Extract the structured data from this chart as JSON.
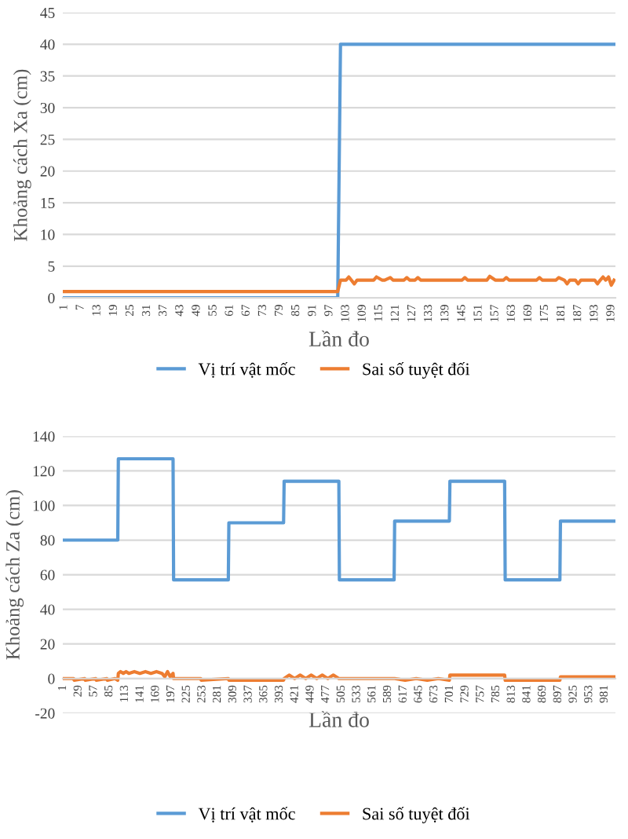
{
  "chart_data": [
    {
      "type": "line",
      "xlabel": "Lần đo",
      "ylabel": "Khoảng cách Xa (cm)",
      "xlim": [
        0.5,
        200.5
      ],
      "xticks": [
        1,
        7,
        13,
        19,
        25,
        31,
        37,
        43,
        49,
        55,
        61,
        67,
        73,
        79,
        85,
        91,
        97,
        103,
        109,
        115,
        121,
        127,
        133,
        139,
        145,
        151,
        157,
        163,
        169,
        175,
        181,
        187,
        193,
        199
      ],
      "ylim": [
        0,
        45
      ],
      "yticks": [
        0,
        5,
        10,
        15,
        20,
        25,
        30,
        35,
        40,
        45
      ],
      "grid": "y",
      "legend": "bottom",
      "series": [
        {
          "name": "Vị trí vật mốc",
          "color": "#5b9bd5",
          "x": [
            1,
            100,
            101,
            200
          ],
          "values": [
            0,
            0,
            40,
            40
          ]
        },
        {
          "name": "Sai số tuyệt đối",
          "color": "#ed7d31",
          "x": [
            1,
            100,
            101,
            103,
            104,
            106,
            107,
            113,
            114,
            116,
            117,
            119,
            120,
            124,
            125,
            126,
            128,
            129,
            130,
            145,
            146,
            147,
            154,
            155,
            157,
            160,
            161,
            162,
            172,
            173,
            174,
            179,
            180,
            182,
            183,
            184,
            185,
            186,
            187,
            188,
            189,
            193,
            194,
            195,
            196,
            197,
            198,
            199,
            200
          ],
          "values": [
            1,
            1,
            2.8,
            2.8,
            3.3,
            2.2,
            2.8,
            2.8,
            3.3,
            2.8,
            2.8,
            3.2,
            2.8,
            2.8,
            3.2,
            2.8,
            2.8,
            3.2,
            2.8,
            2.8,
            3.2,
            2.8,
            2.8,
            3.4,
            2.8,
            2.8,
            3.2,
            2.8,
            2.8,
            3.2,
            2.8,
            2.8,
            3.2,
            2.8,
            2.2,
            2.8,
            2.8,
            2.8,
            2.2,
            2.8,
            2.8,
            2.8,
            2.2,
            2.8,
            3.3,
            2.8,
            3.3,
            2.0,
            2.8
          ]
        }
      ]
    },
    {
      "type": "line",
      "xlabel": "Lần đo",
      "ylabel": "Khoảng cách Za (cm)",
      "xlim": [
        0.5,
        1000.5
      ],
      "xticks": [
        1,
        29,
        57,
        85,
        113,
        141,
        169,
        197,
        225,
        253,
        281,
        309,
        337,
        365,
        393,
        421,
        449,
        477,
        505,
        533,
        561,
        589,
        617,
        645,
        673,
        701,
        729,
        757,
        785,
        813,
        841,
        869,
        897,
        925,
        953,
        981
      ],
      "ylim": [
        -20,
        140
      ],
      "yticks": [
        -20,
        0,
        20,
        40,
        60,
        80,
        100,
        120,
        140
      ],
      "grid": "y",
      "legend": "bottom",
      "series": [
        {
          "name": "Vị trí vật mốc",
          "color": "#5b9bd5",
          "x": [
            1,
            100,
            101,
            200,
            201,
            300,
            301,
            400,
            401,
            500,
            501,
            600,
            601,
            700,
            701,
            800,
            801,
            900,
            901,
            1000
          ],
          "values": [
            80,
            80,
            127,
            127,
            57,
            57,
            90,
            90,
            114,
            114,
            57,
            57,
            91,
            91,
            114,
            114,
            57,
            57,
            91,
            91
          ]
        },
        {
          "name": "Sai số tuyệt đối",
          "color": "#ed7d31",
          "x": [
            1,
            20,
            21,
            40,
            41,
            60,
            61,
            80,
            81,
            95,
            100,
            101,
            105,
            110,
            115,
            120,
            130,
            140,
            150,
            160,
            170,
            180,
            185,
            190,
            195,
            200,
            201,
            250,
            251,
            300,
            301,
            400,
            401,
            410,
            420,
            430,
            440,
            450,
            460,
            470,
            480,
            490,
            500,
            501,
            600,
            601,
            620,
            640,
            660,
            680,
            700,
            701,
            800,
            801,
            900,
            901,
            1000
          ],
          "values": [
            0,
            0,
            -1,
            0,
            -1,
            0,
            -1,
            0,
            -1,
            0,
            -1,
            3,
            4,
            3,
            4,
            3,
            4,
            3,
            4,
            3,
            4,
            3,
            1,
            4,
            1,
            3,
            0,
            0,
            -1,
            0,
            -1,
            -1,
            0,
            2,
            0,
            2,
            0,
            2,
            0,
            2,
            0,
            2,
            0,
            0,
            0,
            0,
            -1,
            0,
            -1,
            0,
            -1,
            2,
            2,
            -1,
            -1,
            1,
            1
          ]
        }
      ]
    }
  ]
}
